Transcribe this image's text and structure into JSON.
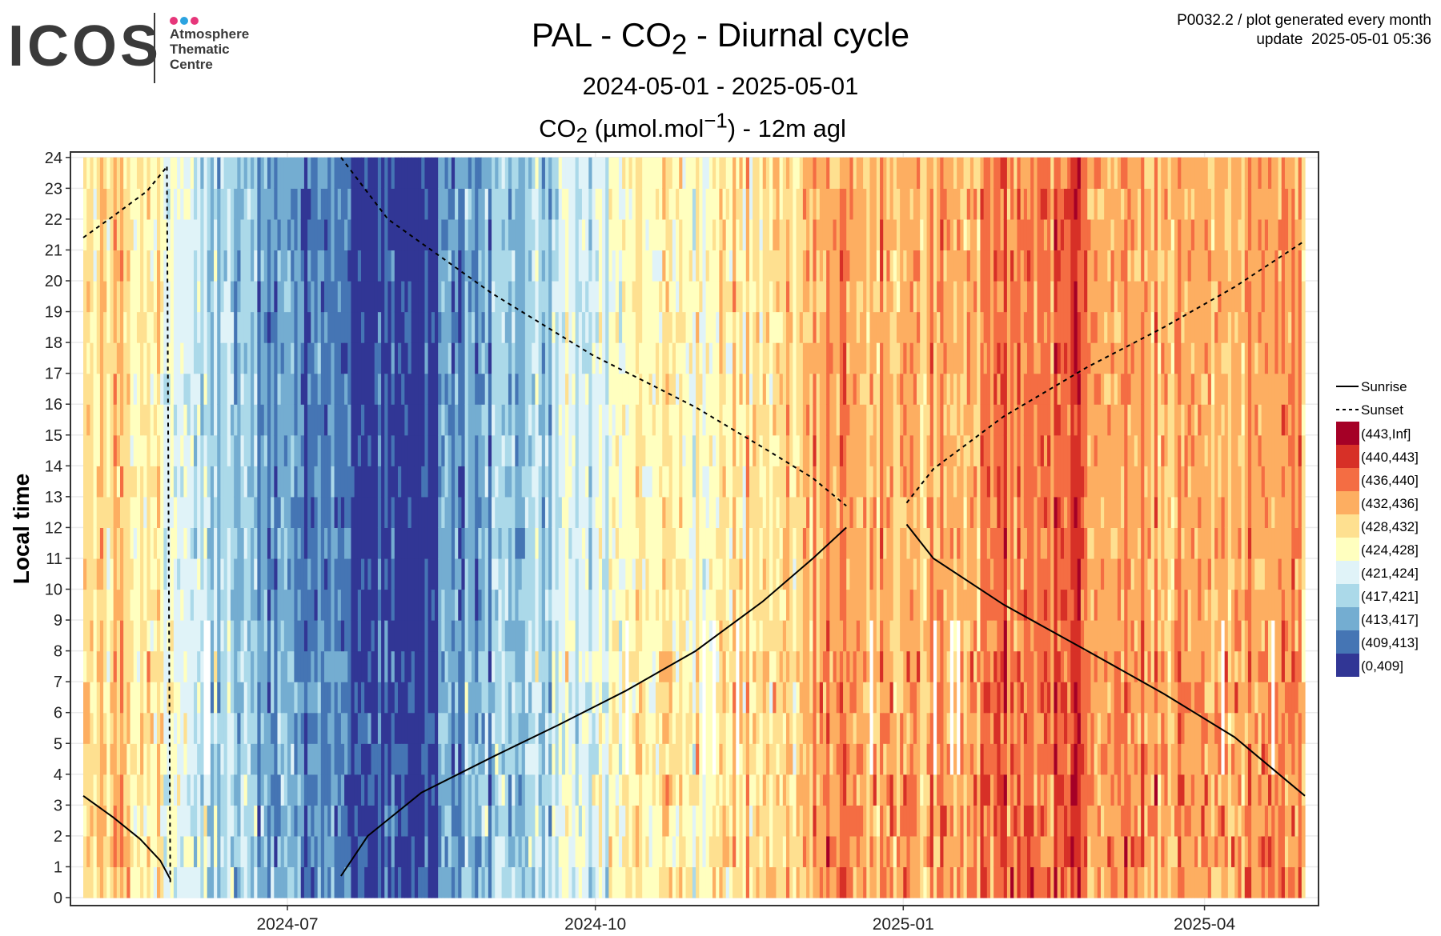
{
  "header": {
    "logo_word": "ICOS",
    "logo_lines": [
      "Atmosphere",
      "Thematic",
      "Centre"
    ],
    "logo_dot_colors": [
      "#e6367a",
      "#2ba3e0",
      "#e6367a"
    ],
    "corner_line1": "P0032.2 / plot generated every month",
    "corner_line2": "update  2025-05-01 05:36"
  },
  "colors": {
    "logo_text": "#3a3a3a",
    "panel_border": "#333333",
    "grid": "#ebebeb",
    "missing": "#ffffff"
  },
  "chart_data": {
    "type": "heatmap",
    "title": "PAL - CO2 - Diurnal cycle",
    "subtitle": "2024-05-01 - 2025-05-01",
    "panel_title": "CO2 (µmol.mol-1) - 12m agl",
    "ylabel": "Local time",
    "xlabel": "",
    "xlim": [
      "2024-05-01",
      "2025-05-01"
    ],
    "ylim": [
      0,
      24
    ],
    "x_ticks": [
      "2024-07",
      "2024-10",
      "2025-01",
      "2025-04"
    ],
    "y_ticks": [
      0,
      1,
      2,
      3,
      4,
      5,
      6,
      7,
      8,
      9,
      10,
      11,
      12,
      13,
      14,
      15,
      16,
      17,
      18,
      19,
      20,
      21,
      22,
      23,
      24
    ],
    "grid": true,
    "legend_position": "right",
    "legend": {
      "lines": [
        {
          "name": "Sunrise",
          "style": "solid"
        },
        {
          "name": "Sunset",
          "style": "dashed"
        }
      ],
      "bins": [
        {
          "label": "(443,Inf]",
          "color": "#a50026"
        },
        {
          "label": "(440,443]",
          "color": "#d73027"
        },
        {
          "label": "(436,440]",
          "color": "#f46d43"
        },
        {
          "label": "(432,436]",
          "color": "#fdae61"
        },
        {
          "label": "(428,432]",
          "color": "#fee090"
        },
        {
          "label": "(424,428]",
          "color": "#ffffbf"
        },
        {
          "label": "(421,424]",
          "color": "#e0f3f8"
        },
        {
          "label": "(417,421]",
          "color": "#abd9e9"
        },
        {
          "label": "(413,417]",
          "color": "#74add1"
        },
        {
          "label": "(409,413]",
          "color": "#4575b4"
        },
        {
          "label": "(0,409]",
          "color": "#313695"
        }
      ]
    },
    "period_bins": [
      {
        "start": "2024-05-01",
        "end": "2024-05-15",
        "bin": 4
      },
      {
        "start": "2024-05-15",
        "end": "2024-05-25",
        "bin": 5
      },
      {
        "start": "2024-05-25",
        "end": "2024-06-05",
        "bin": 6
      },
      {
        "start": "2024-06-05",
        "end": "2024-06-20",
        "bin": 7
      },
      {
        "start": "2024-06-20",
        "end": "2024-07-05",
        "bin": 8
      },
      {
        "start": "2024-07-05",
        "end": "2024-07-20",
        "bin": 9
      },
      {
        "start": "2024-07-20",
        "end": "2024-08-15",
        "bin": 10
      },
      {
        "start": "2024-08-15",
        "end": "2024-08-31",
        "bin": 8
      },
      {
        "start": "2024-08-31",
        "end": "2024-09-20",
        "bin": 7
      },
      {
        "start": "2024-09-20",
        "end": "2024-10-05",
        "bin": 6
      },
      {
        "start": "2024-10-05",
        "end": "2024-10-20",
        "bin": 5
      },
      {
        "start": "2024-10-20",
        "end": "2024-11-05",
        "bin": 5
      },
      {
        "start": "2024-11-05",
        "end": "2024-12-01",
        "bin": 4
      },
      {
        "start": "2024-12-01",
        "end": "2024-12-20",
        "bin": 3
      },
      {
        "start": "2024-12-20",
        "end": "2025-01-25",
        "bin": 3
      },
      {
        "start": "2025-01-25",
        "end": "2025-02-25",
        "bin": 2
      },
      {
        "start": "2025-02-25",
        "end": "2025-05-01",
        "bin": 3
      }
    ],
    "sunrise_segments": [
      [
        [
          "2024-05-01",
          3.3
        ],
        [
          "2024-05-10",
          2.6
        ],
        [
          "2024-05-18",
          1.9
        ],
        [
          "2024-05-24",
          1.2
        ],
        [
          "2024-05-27",
          0.6
        ]
      ],
      [
        [
          "2024-07-17",
          0.7
        ],
        [
          "2024-07-25",
          2.0
        ],
        [
          "2024-08-10",
          3.4
        ],
        [
          "2024-09-01",
          4.6
        ],
        [
          "2024-09-20",
          5.6
        ],
        [
          "2024-10-10",
          6.7
        ],
        [
          "2024-10-31",
          8.0
        ],
        [
          "2024-11-20",
          9.6
        ],
        [
          "2024-12-05",
          11.0
        ],
        [
          "2024-12-15",
          12.0
        ]
      ],
      [
        [
          "2025-01-02",
          12.1
        ],
        [
          "2025-01-10",
          11.0
        ],
        [
          "2025-01-31",
          9.5
        ],
        [
          "2025-02-25",
          8.0
        ],
        [
          "2025-03-20",
          6.6
        ],
        [
          "2025-04-10",
          5.2
        ],
        [
          "2025-05-01",
          3.3
        ]
      ]
    ],
    "sunset_segments": [
      [
        [
          "2024-05-01",
          21.4
        ],
        [
          "2024-05-10",
          22.1
        ],
        [
          "2024-05-20",
          22.9
        ],
        [
          "2024-05-26",
          23.7
        ]
      ],
      [
        [
          "2024-05-26",
          23.7
        ],
        [
          "2024-05-27",
          0.5
        ]
      ],
      [
        [
          "2024-07-17",
          24.0
        ],
        [
          "2024-07-31",
          22.0
        ],
        [
          "2024-08-31",
          19.6
        ],
        [
          "2024-09-30",
          17.6
        ],
        [
          "2024-10-31",
          15.9
        ],
        [
          "2024-11-20",
          14.6
        ],
        [
          "2024-12-05",
          13.6
        ],
        [
          "2024-12-15",
          12.7
        ]
      ],
      [
        [
          "2025-01-02",
          12.8
        ],
        [
          "2025-01-10",
          13.9
        ],
        [
          "2025-01-31",
          15.6
        ],
        [
          "2025-02-25",
          17.2
        ],
        [
          "2025-03-20",
          18.5
        ],
        [
          "2025-04-10",
          19.8
        ],
        [
          "2025-05-01",
          21.3
        ]
      ]
    ]
  }
}
